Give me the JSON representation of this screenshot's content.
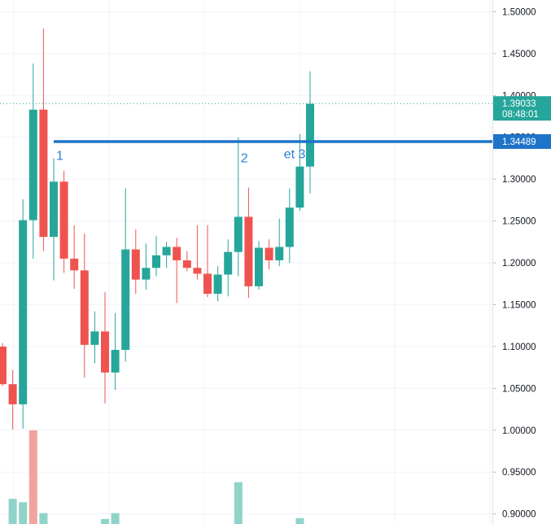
{
  "chart_data": {
    "type": "candlestick",
    "ylim": [
      0.888,
      1.514
    ],
    "y_ticks": [
      "0.90000",
      "0.95000",
      "1.00000",
      "1.05000",
      "1.10000",
      "1.15000",
      "1.20000",
      "1.25000",
      "1.30000",
      "1.35000",
      "1.40000",
      "1.45000",
      "1.50000"
    ],
    "grid": true,
    "colors": {
      "up": "#26a69a",
      "down": "#ef5350",
      "vol_up": "#8fd3c9",
      "vol_down": "#f2a3a0",
      "level": "#1e74c8",
      "badge": "#26a69a"
    },
    "candles": [
      {
        "o": 1.1,
        "h": 1.104,
        "l": 1.053,
        "c": 1.055
      },
      {
        "o": 1.055,
        "h": 1.072,
        "l": 1.001,
        "c": 1.031
      },
      {
        "o": 1.031,
        "h": 1.276,
        "l": 1.002,
        "c": 1.251
      },
      {
        "o": 1.251,
        "h": 1.438,
        "l": 1.205,
        "c": 1.383
      },
      {
        "o": 1.383,
        "h": 1.48,
        "l": 1.214,
        "c": 1.231
      },
      {
        "o": 1.231,
        "h": 1.325,
        "l": 1.179,
        "c": 1.297
      },
      {
        "o": 1.297,
        "h": 1.31,
        "l": 1.188,
        "c": 1.205
      },
      {
        "o": 1.205,
        "h": 1.245,
        "l": 1.169,
        "c": 1.191
      },
      {
        "o": 1.191,
        "h": 1.235,
        "l": 1.063,
        "c": 1.102
      },
      {
        "o": 1.102,
        "h": 1.142,
        "l": 1.08,
        "c": 1.118
      },
      {
        "o": 1.118,
        "h": 1.165,
        "l": 1.032,
        "c": 1.069
      },
      {
        "o": 1.069,
        "h": 1.14,
        "l": 1.048,
        "c": 1.096
      },
      {
        "o": 1.096,
        "h": 1.289,
        "l": 1.082,
        "c": 1.216
      },
      {
        "o": 1.216,
        "h": 1.24,
        "l": 1.163,
        "c": 1.18
      },
      {
        "o": 1.18,
        "h": 1.223,
        "l": 1.168,
        "c": 1.194
      },
      {
        "o": 1.194,
        "h": 1.232,
        "l": 1.184,
        "c": 1.209
      },
      {
        "o": 1.209,
        "h": 1.225,
        "l": 1.194,
        "c": 1.219
      },
      {
        "o": 1.219,
        "h": 1.23,
        "l": 1.152,
        "c": 1.203
      },
      {
        "o": 1.203,
        "h": 1.214,
        "l": 1.19,
        "c": 1.194
      },
      {
        "o": 1.194,
        "h": 1.245,
        "l": 1.18,
        "c": 1.187
      },
      {
        "o": 1.187,
        "h": 1.245,
        "l": 1.159,
        "c": 1.163
      },
      {
        "o": 1.163,
        "h": 1.196,
        "l": 1.154,
        "c": 1.186
      },
      {
        "o": 1.186,
        "h": 1.228,
        "l": 1.16,
        "c": 1.213
      },
      {
        "o": 1.213,
        "h": 1.35,
        "l": 1.184,
        "c": 1.255
      },
      {
        "o": 1.255,
        "h": 1.29,
        "l": 1.158,
        "c": 1.172
      },
      {
        "o": 1.172,
        "h": 1.226,
        "l": 1.168,
        "c": 1.218
      },
      {
        "o": 1.218,
        "h": 1.228,
        "l": 1.192,
        "c": 1.203
      },
      {
        "o": 1.203,
        "h": 1.253,
        "l": 1.196,
        "c": 1.219
      },
      {
        "o": 1.219,
        "h": 1.289,
        "l": 1.2,
        "c": 1.266
      },
      {
        "o": 1.266,
        "h": 1.354,
        "l": 1.262,
        "c": 1.315
      },
      {
        "o": 1.315,
        "h": 1.429,
        "l": 1.283,
        "c": 1.39
      }
    ],
    "volume_bars": [
      {
        "index": 1,
        "top": 0.918,
        "dir": "up"
      },
      {
        "index": 2,
        "top": 0.914,
        "dir": "up"
      },
      {
        "index": 3,
        "top": 1.0,
        "dir": "down"
      },
      {
        "index": 4,
        "top": 0.901,
        "dir": "up"
      },
      {
        "index": 10,
        "top": 0.894,
        "dir": "up"
      },
      {
        "index": 11,
        "top": 0.901,
        "dir": "up"
      },
      {
        "index": 23,
        "top": 0.938,
        "dir": "up"
      },
      {
        "index": 29,
        "top": 0.895,
        "dir": "up"
      }
    ],
    "horizontal_line": {
      "value": 1.3449,
      "label": "1.34489"
    },
    "current_price": {
      "value": 1.39033,
      "label": "1.39033",
      "countdown": "08:48:01"
    },
    "annotations": [
      {
        "text": "1",
        "candle": 5,
        "y": 1.328
      },
      {
        "text": "2",
        "candle": 23,
        "y": 1.325
      },
      {
        "text": "et 3",
        "candle": 27.2,
        "y": 1.33
      }
    ]
  }
}
